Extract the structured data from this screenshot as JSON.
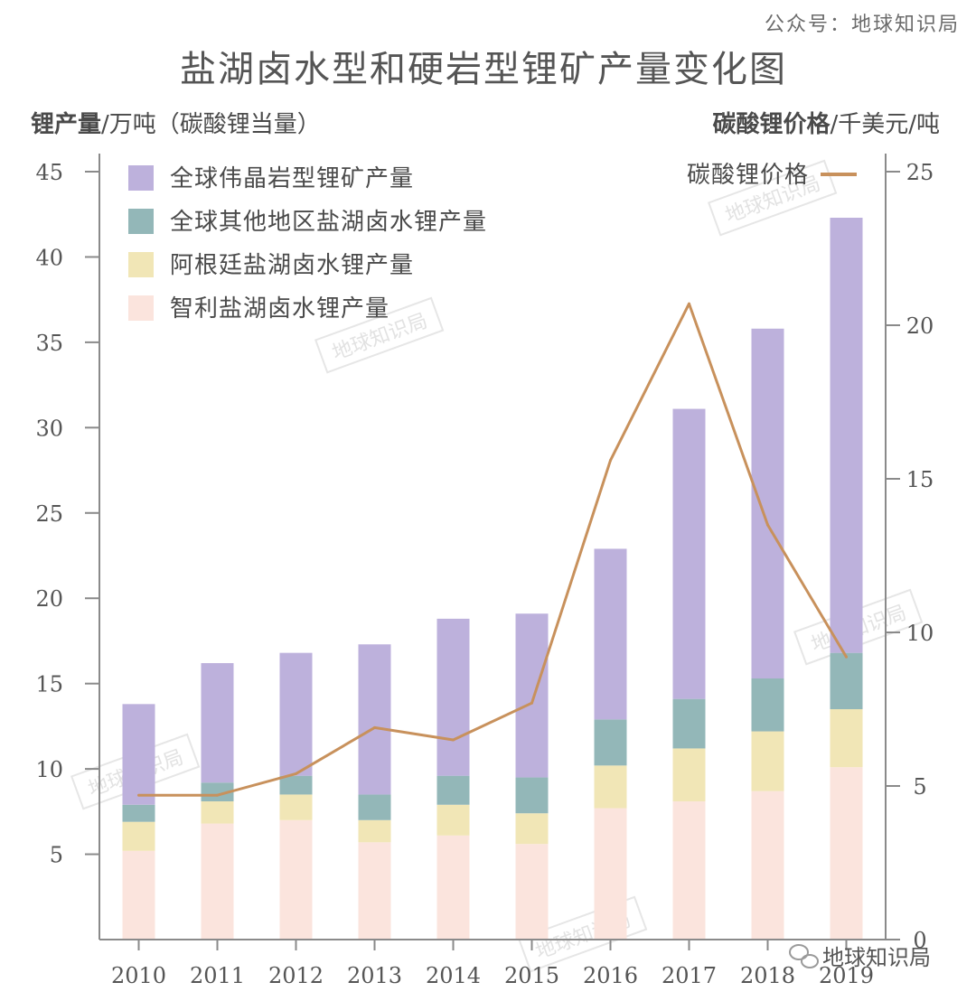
{
  "source": "公众号：地球知识局",
  "watermark": "地球知识局",
  "wechat_account": "地球知识局",
  "chart_data": {
    "type": "bar",
    "stacked": true,
    "title": "盐湖卤水型和硬岩型锂矿产量变化图",
    "ylabel_left_bold": "锂产量",
    "ylabel_left_rest": "/万吨（碳酸锂当量）",
    "ylabel_right_bold": "碳酸锂价格",
    "ylabel_right_rest": "/千美元/吨",
    "categories": [
      "2010",
      "2011",
      "2012",
      "2013",
      "2014",
      "2015",
      "2016",
      "2017",
      "2018",
      "2019"
    ],
    "ylim_left": [
      0,
      45
    ],
    "yticks_left": [
      "5",
      "10",
      "15",
      "20",
      "25",
      "30",
      "35",
      "40",
      "45"
    ],
    "ylim_right": [
      0,
      25
    ],
    "yticks_right": [
      "0",
      "5",
      "10",
      "15",
      "20",
      "25"
    ],
    "series": [
      {
        "name": "智利盐湖卤水锂产量",
        "color": "#fbe4dd",
        "values": [
          5.2,
          6.8,
          7.0,
          5.7,
          6.1,
          5.6,
          7.7,
          8.1,
          8.7,
          10.1
        ]
      },
      {
        "name": "阿根廷盐湖卤水锂产量",
        "color": "#f1e6b6",
        "values": [
          1.7,
          1.3,
          1.5,
          1.3,
          1.8,
          1.8,
          2.5,
          3.1,
          3.5,
          3.4
        ]
      },
      {
        "name": "全球其他地区盐湖卤水锂产量",
        "color": "#93b7b8",
        "values": [
          1.0,
          1.1,
          1.1,
          1.5,
          1.7,
          2.1,
          2.7,
          2.9,
          3.1,
          3.3
        ]
      },
      {
        "name": "全球伟晶岩型锂矿产量",
        "color": "#bdb1dc",
        "values": [
          5.9,
          7.0,
          7.2,
          8.8,
          9.2,
          9.6,
          10.0,
          17.0,
          20.5,
          25.5
        ]
      }
    ],
    "line": {
      "name": "碳酸锂价格",
      "color": "#c8915c",
      "axis": "right",
      "values": [
        4.7,
        4.7,
        5.4,
        6.9,
        6.5,
        7.7,
        15.6,
        20.7,
        13.5,
        9.2
      ]
    },
    "legend_order": [
      "全球伟晶岩型锂矿产量",
      "全球其他地区盐湖卤水锂产量",
      "阿根廷盐湖卤水锂产量",
      "智利盐湖卤水锂产量"
    ],
    "legend_position": "top-left",
    "line_legend_position": "top-right",
    "grid": false
  }
}
